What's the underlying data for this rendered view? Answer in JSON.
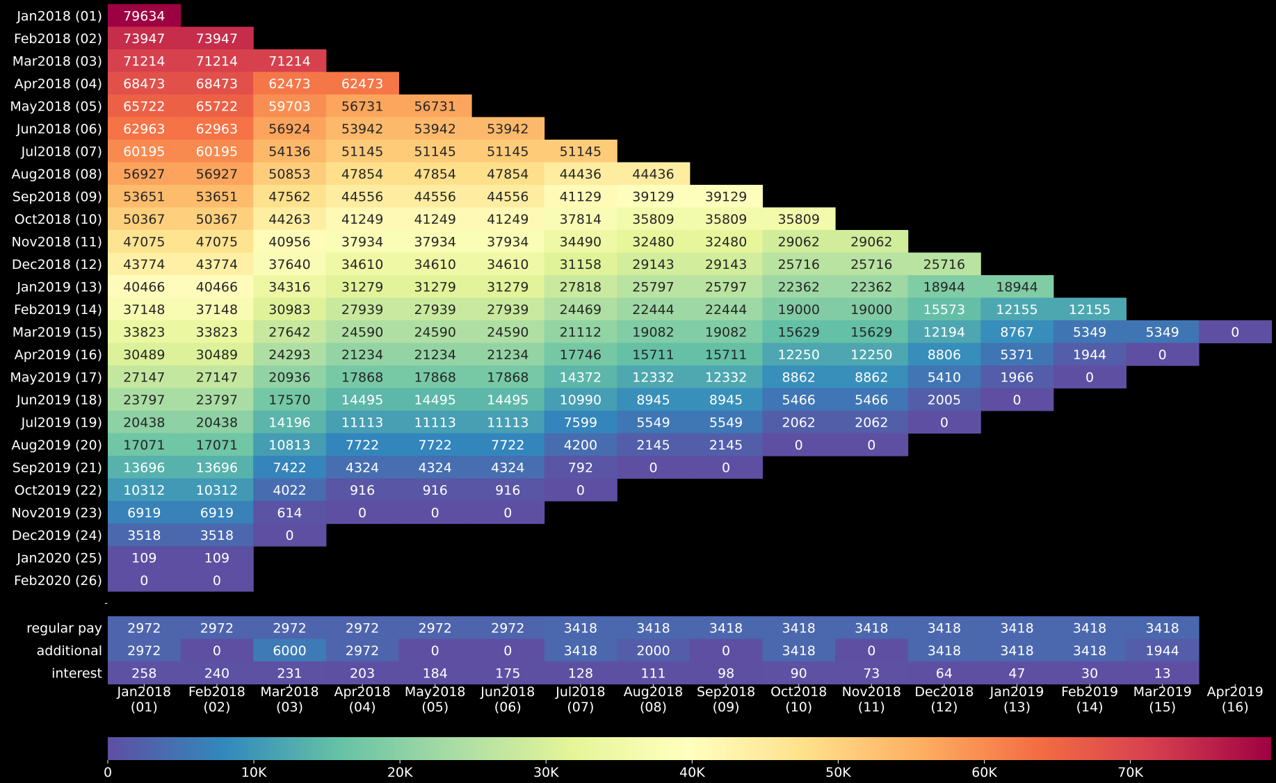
{
  "chart_data": {
    "type": "heatmap",
    "colormap": "Spectral_r",
    "color_range": [
      0,
      79634
    ],
    "background": "#000000",
    "text_color": "#ffffff",
    "row_labels": [
      "Jan2018 (01)",
      "Feb2018 (02)",
      "Mar2018 (03)",
      "Apr2018 (04)",
      "May2018 (05)",
      "Jun2018 (06)",
      "Jul2018 (07)",
      "Aug2018 (08)",
      "Sep2018 (09)",
      "Oct2018 (10)",
      "Nov2018 (11)",
      "Dec2018 (12)",
      "Jan2019 (13)",
      "Feb2019 (14)",
      "Mar2019 (15)",
      "Apr2019 (16)",
      "May2019 (17)",
      "Jun2019 (18)",
      "Jul2019 (19)",
      "Aug2019 (20)",
      "Sep2019 (21)",
      "Oct2019 (22)",
      "Nov2019 (23)",
      "Dec2019 (24)",
      "Jan2020 (25)",
      "Feb2020 (26)"
    ],
    "separator_label": "-",
    "footer_labels": [
      "regular pay",
      "additional",
      "interest"
    ],
    "column_labels": [
      [
        "Jan2018",
        "(01)"
      ],
      [
        "Feb2018",
        "(02)"
      ],
      [
        "Mar2018",
        "(03)"
      ],
      [
        "Apr2018",
        "(04)"
      ],
      [
        "May2018",
        "(05)"
      ],
      [
        "Jun2018",
        "(06)"
      ],
      [
        "Jul2018",
        "(07)"
      ],
      [
        "Aug2018",
        "(08)"
      ],
      [
        "Sep2018",
        "(09)"
      ],
      [
        "Oct2018",
        "(10)"
      ],
      [
        "Nov2018",
        "(11)"
      ],
      [
        "Dec2018",
        "(12)"
      ],
      [
        "Jan2019",
        "(13)"
      ],
      [
        "Feb2019",
        "(14)"
      ],
      [
        "Mar2019",
        "(15)"
      ],
      [
        "Apr2019",
        "(16)"
      ]
    ],
    "matrix": [
      [
        79634
      ],
      [
        73947,
        73947
      ],
      [
        71214,
        71214,
        71214
      ],
      [
        68473,
        68473,
        62473,
        62473
      ],
      [
        65722,
        65722,
        59703,
        56731,
        56731
      ],
      [
        62963,
        62963,
        56924,
        53942,
        53942,
        53942
      ],
      [
        60195,
        60195,
        54136,
        51145,
        51145,
        51145,
        51145
      ],
      [
        56927,
        56927,
        50853,
        47854,
        47854,
        47854,
        44436,
        44436
      ],
      [
        53651,
        53651,
        47562,
        44556,
        44556,
        44556,
        41129,
        39129,
        39129
      ],
      [
        50367,
        50367,
        44263,
        41249,
        41249,
        41249,
        37814,
        35809,
        35809,
        35809
      ],
      [
        47075,
        47075,
        40956,
        37934,
        37934,
        37934,
        34490,
        32480,
        32480,
        29062,
        29062
      ],
      [
        43774,
        43774,
        37640,
        34610,
        34610,
        34610,
        31158,
        29143,
        29143,
        25716,
        25716,
        25716
      ],
      [
        40466,
        40466,
        34316,
        31279,
        31279,
        31279,
        27818,
        25797,
        25797,
        22362,
        22362,
        18944,
        18944
      ],
      [
        37148,
        37148,
        30983,
        27939,
        27939,
        27939,
        24469,
        22444,
        22444,
        19000,
        19000,
        15573,
        12155,
        12155
      ],
      [
        33823,
        33823,
        27642,
        24590,
        24590,
        24590,
        21112,
        19082,
        19082,
        15629,
        15629,
        12194,
        8767,
        5349,
        5349,
        0
      ],
      [
        30489,
        30489,
        24293,
        21234,
        21234,
        21234,
        17746,
        15711,
        15711,
        12250,
        12250,
        8806,
        5371,
        1944,
        0
      ],
      [
        27147,
        27147,
        20936,
        17868,
        17868,
        17868,
        14372,
        12332,
        12332,
        8862,
        8862,
        5410,
        1966,
        0
      ],
      [
        23797,
        23797,
        17570,
        14495,
        14495,
        14495,
        10990,
        8945,
        8945,
        5466,
        5466,
        2005,
        0
      ],
      [
        20438,
        20438,
        14196,
        11113,
        11113,
        11113,
        7599,
        5549,
        5549,
        2062,
        2062,
        0
      ],
      [
        17071,
        17071,
        10813,
        7722,
        7722,
        7722,
        4200,
        2145,
        2145,
        0,
        0
      ],
      [
        13696,
        13696,
        7422,
        4324,
        4324,
        4324,
        792,
        0,
        0
      ],
      [
        10312,
        10312,
        4022,
        916,
        916,
        916,
        0
      ],
      [
        6919,
        6919,
        614,
        0,
        0,
        0
      ],
      [
        3518,
        3518,
        0
      ],
      [
        109,
        109
      ],
      [
        0,
        0
      ]
    ],
    "footer_matrix": [
      [
        2972,
        2972,
        2972,
        2972,
        2972,
        2972,
        3418,
        3418,
        3418,
        3418,
        3418,
        3418,
        3418,
        3418,
        3418
      ],
      [
        2972,
        0,
        6000,
        2972,
        0,
        0,
        3418,
        2000,
        0,
        3418,
        0,
        3418,
        3418,
        3418,
        1944
      ],
      [
        258,
        240,
        231,
        203,
        184,
        175,
        128,
        111,
        98,
        90,
        73,
        64,
        47,
        30,
        13
      ]
    ],
    "colorbar": {
      "ticks": [
        0,
        10000,
        20000,
        30000,
        40000,
        50000,
        60000,
        70000
      ],
      "tick_labels": [
        "0",
        "10K",
        "20K",
        "30K",
        "40K",
        "50K",
        "60K",
        "70K"
      ]
    }
  }
}
